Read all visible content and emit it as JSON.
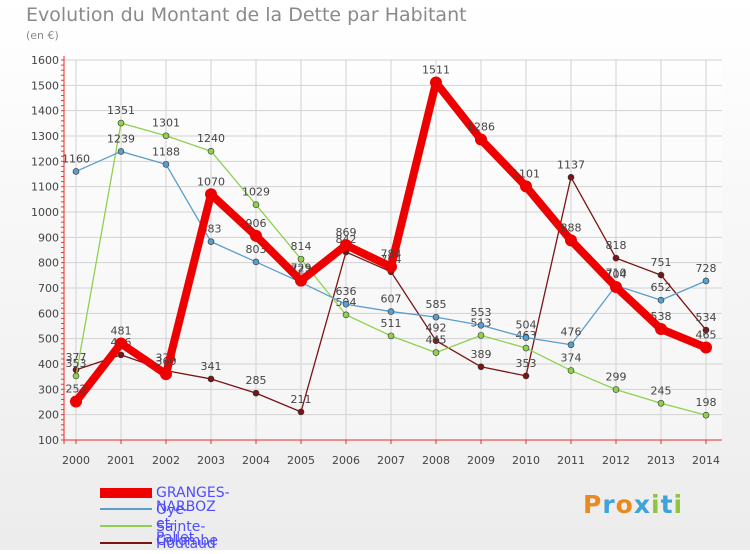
{
  "header": {
    "title": "Evolution du Montant de la Dette par Habitant",
    "subtitle": "(en €)"
  },
  "logo": {
    "text": "Proxiti",
    "colors": [
      "#ea8a1e",
      "#3da3d9",
      "#ea8a1e",
      "#3da3d9",
      "#8cc63f",
      "#3da3d9",
      "#8cc63f"
    ]
  },
  "chart_data": {
    "type": "line",
    "title": "Evolution du Montant de la Dette par Habitant",
    "subtitle": "(en €)",
    "xlabel": "",
    "ylabel": "",
    "ylim": [
      100,
      1600
    ],
    "yticks": [
      100,
      200,
      300,
      400,
      500,
      600,
      700,
      800,
      900,
      1000,
      1100,
      1200,
      1300,
      1400,
      1500,
      1600
    ],
    "categories": [
      "2000",
      "2001",
      "2002",
      "2003",
      "2004",
      "2005",
      "2006",
      "2007",
      "2008",
      "2009",
      "2010",
      "2011",
      "2012",
      "2013",
      "2014"
    ],
    "grid": true,
    "legend_position": "bottom-left",
    "series": [
      {
        "name": "Houtaud",
        "color": "#7b1414",
        "values": [
          377,
          436,
          374,
          341,
          285,
          211,
          842,
          764,
          492,
          389,
          353,
          1137,
          818,
          751,
          534
        ]
      },
      {
        "name": "Sainte-Colombe",
        "color": "#8fd14f",
        "values": [
          353,
          1351,
          1301,
          1240,
          1029,
          814,
          594,
          511,
          445,
          513,
          463,
          374,
          299,
          245,
          198
        ]
      },
      {
        "name": "Oye-et-Pallet",
        "color": "#5a9ecb",
        "values": [
          1160,
          1239,
          1188,
          883,
          803,
          722,
          636,
          607,
          585,
          553,
          504,
          476,
          710,
          652,
          728
        ]
      },
      {
        "name": "GRANGES-NARBOZ",
        "color": "#ee0000",
        "values": [
          252,
          481,
          360,
          1070,
          906,
          729,
          869,
          784,
          1511,
          1286,
          1101,
          888,
          704,
          538,
          465
        ]
      }
    ],
    "legend": [
      "GRANGES-NARBOZ",
      "Oye-et-Pallet",
      "Sainte-Colombe",
      "Houtaud"
    ]
  }
}
